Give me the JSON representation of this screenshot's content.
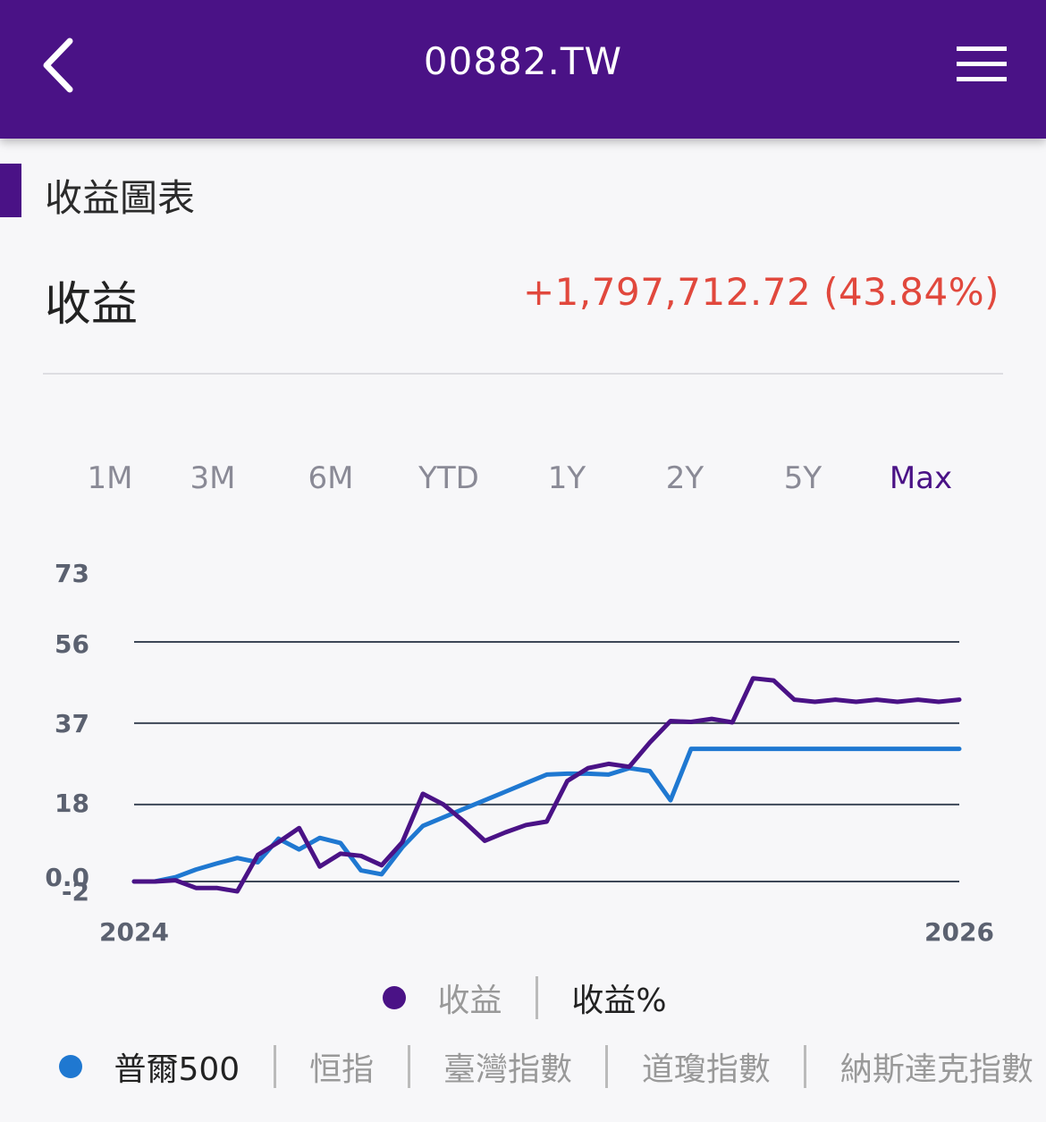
{
  "header": {
    "title": "00882.TW",
    "back_icon": "chevron-left-icon",
    "menu_icon": "hamburger-menu-icon"
  },
  "section": {
    "title": "收益圖表"
  },
  "summary": {
    "label": "收益",
    "value": "+1,797,712.72 (43.84%)",
    "value_color": "#e1483d"
  },
  "range_tabs": [
    {
      "label": "1M"
    },
    {
      "label": "3M"
    },
    {
      "label": "6M"
    },
    {
      "label": "YTD"
    },
    {
      "label": "1Y"
    },
    {
      "label": "2Y"
    },
    {
      "label": "5Y"
    },
    {
      "label": "Max",
      "active": true
    }
  ],
  "legend_primary": {
    "items": [
      "收益",
      "收益%"
    ],
    "dot_color": "#4a1286"
  },
  "legend_benchmarks": {
    "items": [
      "普爾500",
      "恒指",
      "臺灣指數",
      "道瓊指數",
      "納斯達克指數"
    ],
    "dot_color": "#1f78d1"
  },
  "chart_data": {
    "type": "line",
    "y_ticks": [
      "-2",
      "0.0",
      "18",
      "37",
      "56",
      "73"
    ],
    "x_ticks": [
      "2024",
      "2026"
    ],
    "ylim": [
      -2,
      73
    ],
    "grid": true,
    "series": [
      {
        "name": "收益",
        "color": "#4a1286",
        "x": [
          0,
          1,
          2,
          3,
          4,
          5,
          6,
          7,
          8,
          9,
          10,
          11,
          12,
          13,
          14,
          15,
          16,
          17,
          18,
          19,
          20,
          21,
          22,
          23,
          24,
          25,
          26,
          27,
          28,
          29,
          30,
          31,
          32,
          33,
          34,
          35,
          36,
          37,
          38,
          39,
          40
        ],
        "values": [
          0,
          0,
          0.3,
          -1.5,
          -1.5,
          -2.3,
          6.2,
          9.2,
          12.5,
          3.5,
          6.5,
          6,
          3.8,
          9.2,
          20.5,
          18,
          14,
          9.5,
          11.5,
          13.2,
          14,
          23.5,
          26.5,
          27.5,
          26.8,
          32.5,
          37.5,
          37.3,
          38,
          37.2,
          47.5,
          47,
          42.5,
          42,
          42.5,
          42,
          42.5,
          42,
          42.5,
          42,
          42.5
        ]
      },
      {
        "name": "普爾500",
        "color": "#1f78d1",
        "x": [
          0,
          1,
          2,
          3,
          4,
          5,
          6,
          7,
          8,
          9,
          10,
          11,
          12,
          13,
          14,
          15,
          16,
          17,
          18,
          19,
          20,
          21,
          22,
          23,
          24,
          25,
          26,
          27,
          28,
          29,
          30,
          31,
          32,
          33,
          34,
          35,
          36,
          37,
          38,
          39,
          40
        ],
        "values": [
          0,
          0,
          1,
          2.8,
          4.2,
          5.5,
          4.5,
          10,
          7.5,
          10.2,
          9,
          2.6,
          1.7,
          8,
          13,
          15,
          17,
          19,
          21,
          23,
          25,
          25.2,
          25.2,
          25,
          26.5,
          25.8,
          19,
          31,
          31,
          31,
          31,
          31,
          31,
          31,
          31,
          31,
          31,
          31,
          31,
          31,
          31
        ]
      }
    ]
  }
}
